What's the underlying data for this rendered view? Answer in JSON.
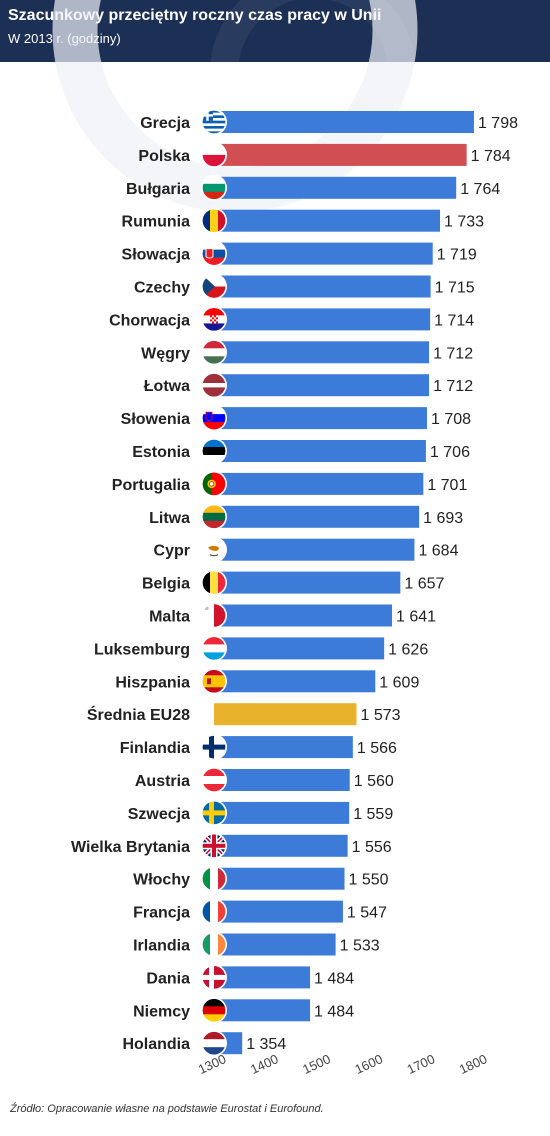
{
  "header": {
    "title": "Szacunkowy przeciętny roczny czas pracy w Unii",
    "subtitle": "W 2013 r. (godziny)"
  },
  "colors": {
    "header_bg": "#1c2f55",
    "bar_default": "#3d7bd9",
    "bar_poland": "#d14f52",
    "bar_average": "#e9b22d"
  },
  "chart_data": {
    "type": "bar",
    "orientation": "horizontal",
    "title": "Szacunkowy przeciętny roczny czas pracy w Unii",
    "subtitle": "W 2013 r. (godziny)",
    "xlim": [
      1300,
      1800
    ],
    "ticks": [
      1300,
      1400,
      1500,
      1600,
      1700,
      1800
    ],
    "tick_labels": [
      "1300",
      "1400",
      "1500",
      "1600",
      "1700",
      "1800"
    ],
    "grid": false,
    "categories": [
      "Grecja",
      "Polska",
      "Bułgaria",
      "Rumunia",
      "Słowacja",
      "Czechy",
      "Chorwacja",
      "Węgry",
      "Łotwa",
      "Słowenia",
      "Estonia",
      "Portugalia",
      "Litwa",
      "Cypr",
      "Belgia",
      "Malta",
      "Luksemburg",
      "Hiszpania",
      "Średnia EU28",
      "Finlandia",
      "Austria",
      "Szwecja",
      "Wielka Brytania",
      "Włochy",
      "Francja",
      "Irlandia",
      "Dania",
      "Niemcy",
      "Holandia"
    ],
    "values": [
      1798,
      1784,
      1764,
      1733,
      1719,
      1715,
      1714,
      1712,
      1712,
      1708,
      1706,
      1701,
      1693,
      1684,
      1657,
      1641,
      1626,
      1609,
      1573,
      1566,
      1560,
      1559,
      1556,
      1550,
      1547,
      1533,
      1484,
      1484,
      1354
    ],
    "value_labels": [
      "1 798",
      "1 784",
      "1 764",
      "1 733",
      "1 719",
      "1 715",
      "1 714",
      "1 712",
      "1 712",
      "1 708",
      "1 706",
      "1 701",
      "1 693",
      "1 684",
      "1 657",
      "1 641",
      "1 626",
      "1 609",
      "1 573",
      "1 566",
      "1 560",
      "1 559",
      "1 556",
      "1 550",
      "1 547",
      "1 533",
      "1 484",
      "1 484",
      "1 354"
    ],
    "highlight": {
      "Polska": "bar_poland",
      "Średnia EU28": "bar_average"
    }
  },
  "flags": [
    "flag-greece-icon",
    "flag-poland-icon",
    "flag-bulgaria-icon",
    "flag-romania-icon",
    "flag-slovakia-icon",
    "flag-czechia-icon",
    "flag-croatia-icon",
    "flag-hungary-icon",
    "flag-latvia-icon",
    "flag-slovenia-icon",
    "flag-estonia-icon",
    "flag-portugal-icon",
    "flag-lithuania-icon",
    "flag-cyprus-icon",
    "flag-belgium-icon",
    "flag-malta-icon",
    "flag-luxembourg-icon",
    "flag-spain-icon",
    "",
    "flag-finland-icon",
    "flag-austria-icon",
    "flag-sweden-icon",
    "flag-uk-icon",
    "flag-italy-icon",
    "flag-france-icon",
    "flag-ireland-icon",
    "flag-denmark-icon",
    "flag-germany-icon",
    "flag-netherlands-icon"
  ],
  "source": "Źródło: Opracowanie własne na podstawie Eurostat i Eurofound."
}
